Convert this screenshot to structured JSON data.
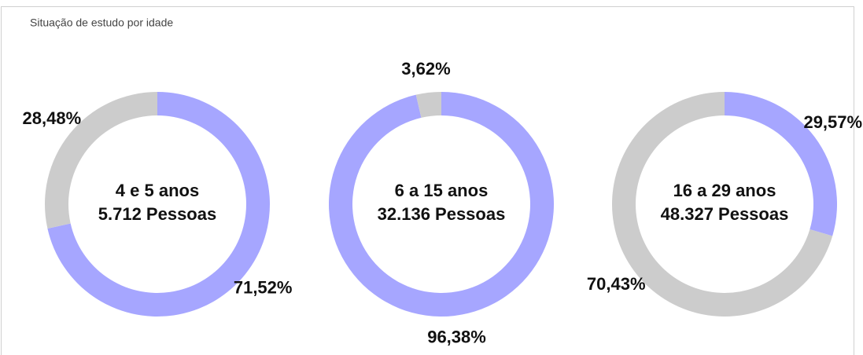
{
  "title": "Situação de estudo por idade",
  "chart_data": [
    {
      "type": "donut",
      "center_label": [
        "4 e 5 anos",
        "5.712 Pessoas"
      ],
      "values": [
        71.52,
        28.48
      ],
      "value_labels": [
        "71,52%",
        "28,48%"
      ],
      "colors": [
        "#a6a6ff",
        "#cccccc"
      ]
    },
    {
      "type": "donut",
      "center_label": [
        "6 a 15 anos",
        "32.136 Pessoas"
      ],
      "values": [
        96.38,
        3.62
      ],
      "value_labels": [
        "96,38%",
        "3,62%"
      ],
      "colors": [
        "#a6a6ff",
        "#cccccc"
      ]
    },
    {
      "type": "donut",
      "center_label": [
        "16 a 29 anos",
        "48.327 Pessoas"
      ],
      "values": [
        29.57,
        70.43
      ],
      "value_labels": [
        "29,57%",
        "70,43%"
      ],
      "colors": [
        "#a6a6ff",
        "#cccccc"
      ]
    }
  ]
}
